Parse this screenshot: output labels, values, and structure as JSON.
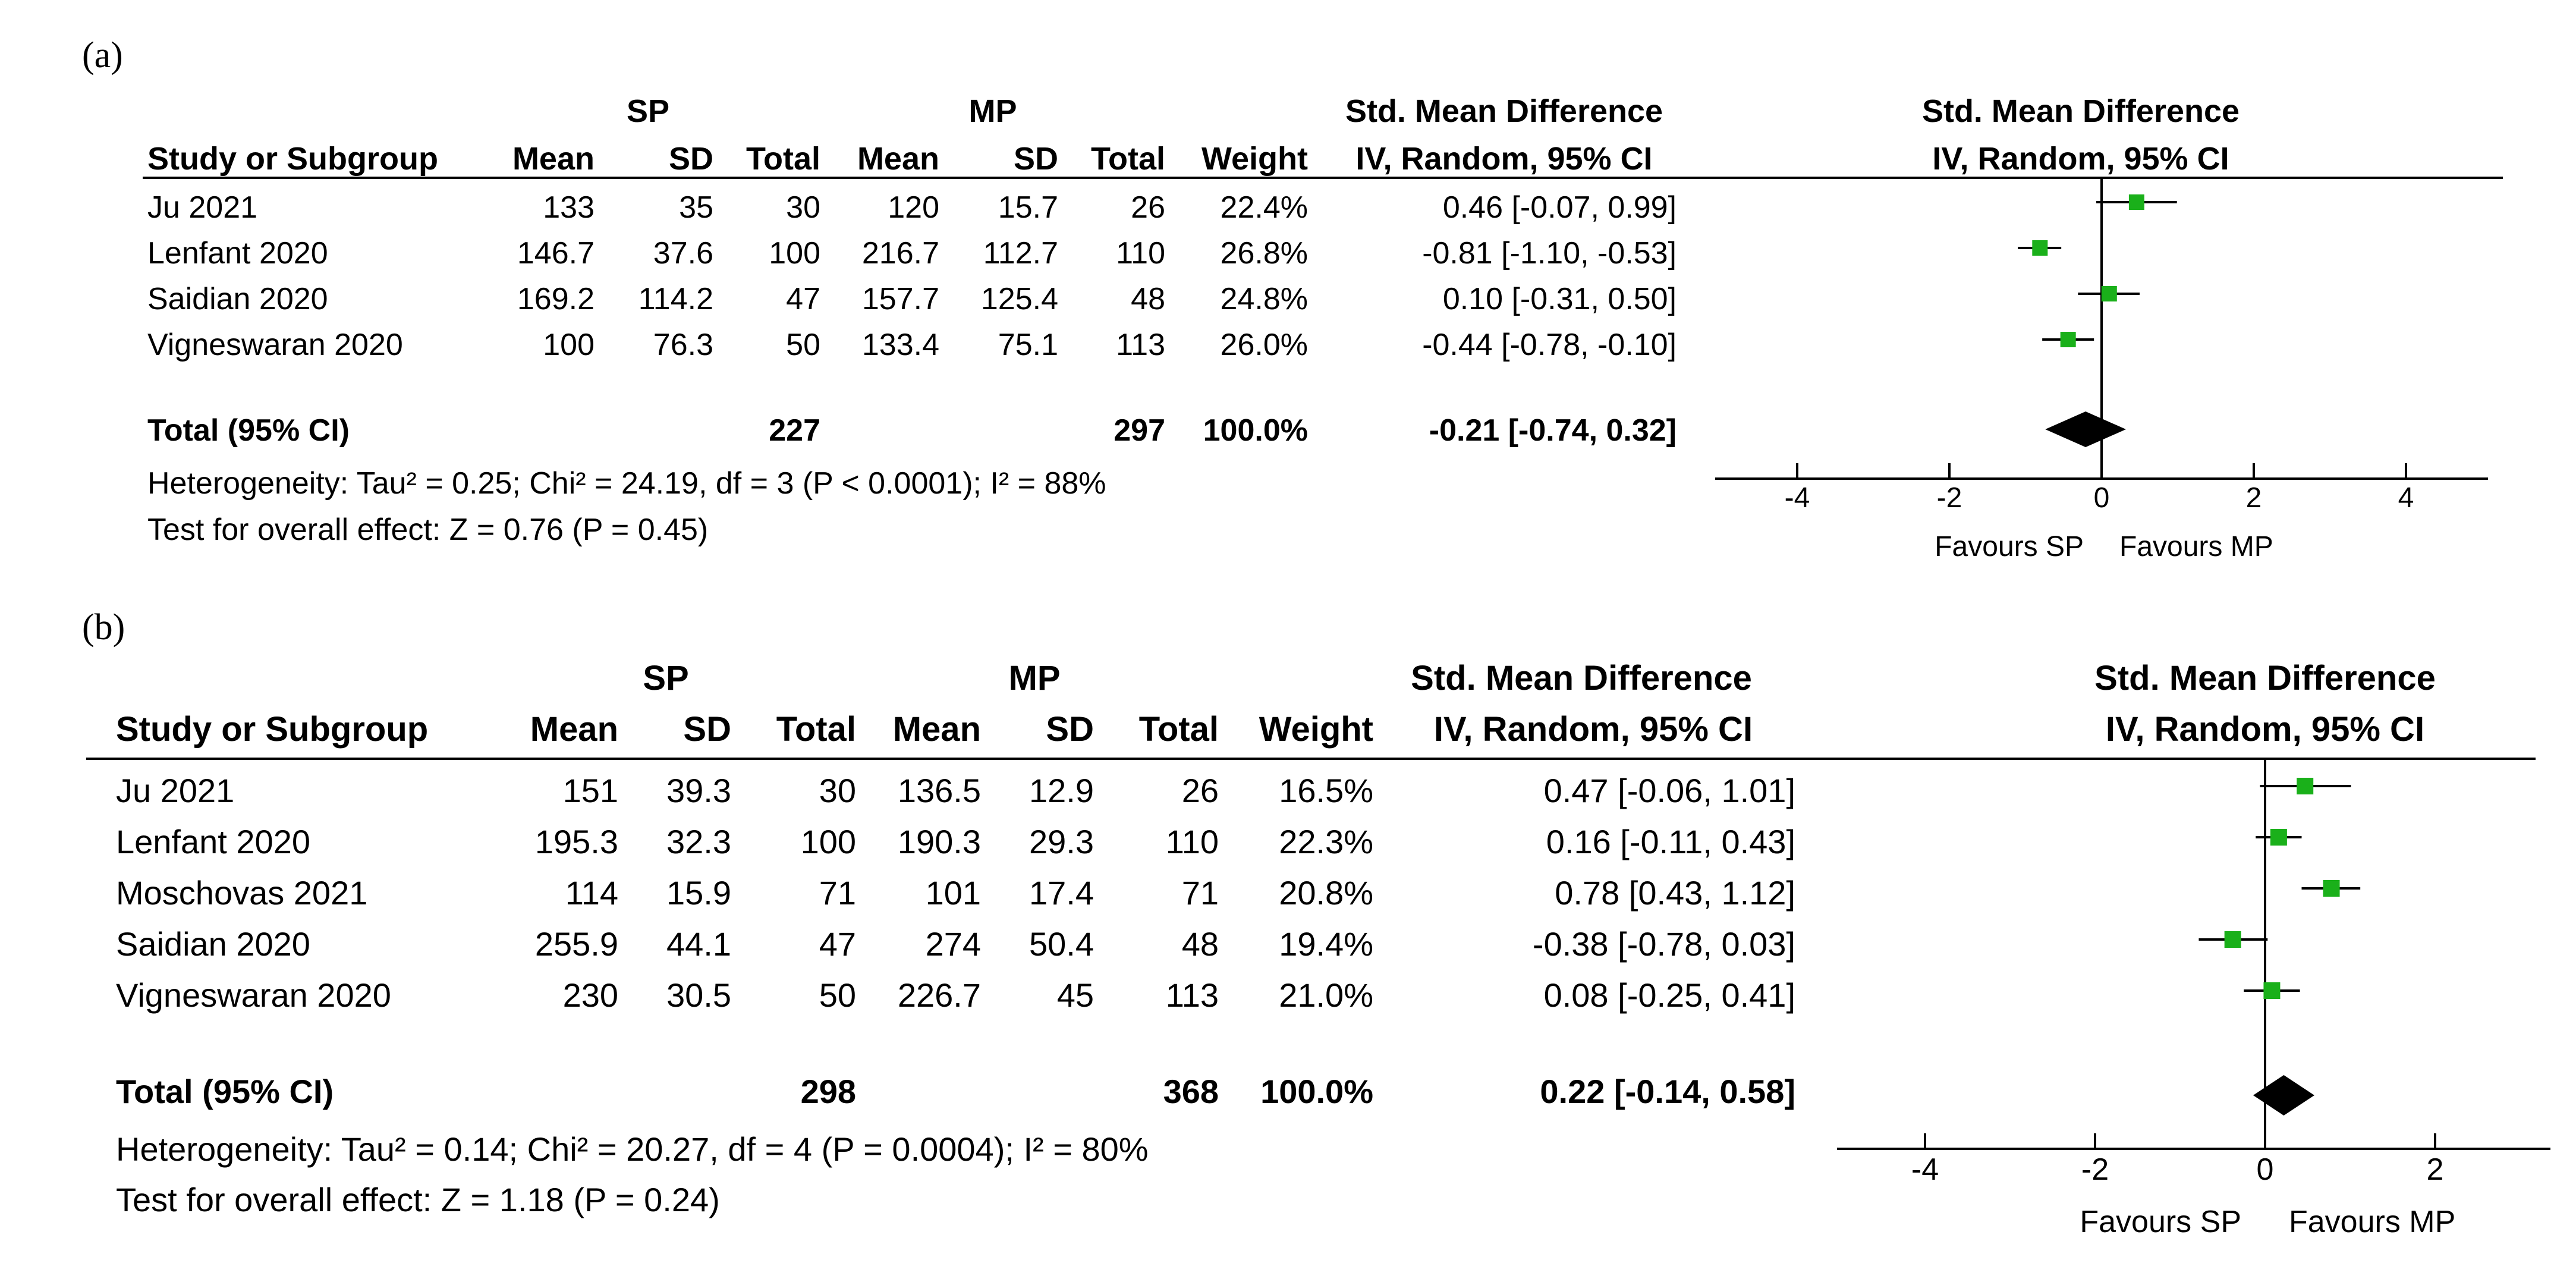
{
  "chart_data": [
    {
      "type": "forest",
      "panel_label": "(a)",
      "group1": "SP",
      "group2": "MP",
      "column_headers": {
        "study": "Study or Subgroup",
        "mean": "Mean",
        "sd": "SD",
        "total": "Total",
        "weight": "Weight",
        "effect_title": "Std. Mean Difference",
        "effect_method": "IV, Random, 95% CI"
      },
      "plot_headers": {
        "title": "Std. Mean Difference",
        "method": "IV, Random, 95% CI"
      },
      "studies": [
        {
          "name": "Ju 2021",
          "sp_mean": "133",
          "sp_sd": "35",
          "sp_total": "30",
          "mp_mean": "120",
          "mp_sd": "15.7",
          "mp_total": "26",
          "weight": "22.4%",
          "ci_text": "0.46 [-0.07, 0.99]",
          "est": 0.46,
          "lo": -0.07,
          "hi": 0.99
        },
        {
          "name": "Lenfant 2020",
          "sp_mean": "146.7",
          "sp_sd": "37.6",
          "sp_total": "100",
          "mp_mean": "216.7",
          "mp_sd": "112.7",
          "mp_total": "110",
          "weight": "26.8%",
          "ci_text": "-0.81 [-1.10, -0.53]",
          "est": -0.81,
          "lo": -1.1,
          "hi": -0.53
        },
        {
          "name": "Saidian 2020",
          "sp_mean": "169.2",
          "sp_sd": "114.2",
          "sp_total": "47",
          "mp_mean": "157.7",
          "mp_sd": "125.4",
          "mp_total": "48",
          "weight": "24.8%",
          "ci_text": "0.10 [-0.31, 0.50]",
          "est": 0.1,
          "lo": -0.31,
          "hi": 0.5
        },
        {
          "name": "Vigneswaran 2020",
          "sp_mean": "100",
          "sp_sd": "76.3",
          "sp_total": "50",
          "mp_mean": "133.4",
          "mp_sd": "75.1",
          "mp_total": "113",
          "weight": "26.0%",
          "ci_text": "-0.44 [-0.78, -0.10]",
          "est": -0.44,
          "lo": -0.78,
          "hi": -0.1
        }
      ],
      "total": {
        "label": "Total (95% CI)",
        "sp_total": "227",
        "mp_total": "297",
        "weight": "100.0%",
        "ci_text": "-0.21 [-0.74, 0.32]",
        "est": -0.21,
        "lo": -0.74,
        "hi": 0.32
      },
      "heterogeneity": "Heterogeneity: Tau² = 0.25; Chi² = 24.19, df = 3 (P < 0.0001); I² = 88%",
      "overall_effect": "Test for overall effect: Z = 0.76 (P = 0.45)",
      "axis": {
        "min": -5,
        "max": 5,
        "ticks": [
          -4,
          -2,
          0,
          2,
          4
        ],
        "tick_labels": [
          "-4",
          "-2",
          "0",
          "2",
          "4"
        ]
      },
      "favours_left": "Favours SP",
      "favours_right": "Favours MP",
      "marker_color": "#1ab01a"
    },
    {
      "type": "forest",
      "panel_label": "(b)",
      "group1": "SP",
      "group2": "MP",
      "column_headers": {
        "study": "Study or Subgroup",
        "mean": "Mean",
        "sd": "SD",
        "total": "Total",
        "weight": "Weight",
        "effect_title": "Std. Mean Difference",
        "effect_method": "IV, Random, 95% CI"
      },
      "plot_headers": {
        "title": "Std. Mean Difference",
        "method": "IV, Random, 95% CI"
      },
      "studies": [
        {
          "name": "Ju 2021",
          "sp_mean": "151",
          "sp_sd": "39.3",
          "sp_total": "30",
          "mp_mean": "136.5",
          "mp_sd": "12.9",
          "mp_total": "26",
          "weight": "16.5%",
          "ci_text": "0.47 [-0.06, 1.01]",
          "est": 0.47,
          "lo": -0.06,
          "hi": 1.01
        },
        {
          "name": "Lenfant 2020",
          "sp_mean": "195.3",
          "sp_sd": "32.3",
          "sp_total": "100",
          "mp_mean": "190.3",
          "mp_sd": "29.3",
          "mp_total": "110",
          "weight": "22.3%",
          "ci_text": "0.16 [-0.11, 0.43]",
          "est": 0.16,
          "lo": -0.11,
          "hi": 0.43
        },
        {
          "name": "Moschovas 2021",
          "sp_mean": "114",
          "sp_sd": "15.9",
          "sp_total": "71",
          "mp_mean": "101",
          "mp_sd": "17.4",
          "mp_total": "71",
          "weight": "20.8%",
          "ci_text": "0.78 [0.43, 1.12]",
          "est": 0.78,
          "lo": 0.43,
          "hi": 1.12
        },
        {
          "name": "Saidian 2020",
          "sp_mean": "255.9",
          "sp_sd": "44.1",
          "sp_total": "47",
          "mp_mean": "274",
          "mp_sd": "50.4",
          "mp_total": "48",
          "weight": "19.4%",
          "ci_text": "-0.38 [-0.78, 0.03]",
          "est": -0.38,
          "lo": -0.78,
          "hi": 0.03
        },
        {
          "name": "Vigneswaran 2020",
          "sp_mean": "230",
          "sp_sd": "30.5",
          "sp_total": "50",
          "mp_mean": "226.7",
          "mp_sd": "45",
          "mp_total": "113",
          "weight": "21.0%",
          "ci_text": "0.08 [-0.25, 0.41]",
          "est": 0.08,
          "lo": -0.25,
          "hi": 0.41
        }
      ],
      "total": {
        "label": "Total (95% CI)",
        "sp_total": "298",
        "mp_total": "368",
        "weight": "100.0%",
        "ci_text": "0.22 [-0.14, 0.58]",
        "est": 0.22,
        "lo": -0.14,
        "hi": 0.58
      },
      "heterogeneity": "Heterogeneity: Tau² = 0.14; Chi² = 20.27, df = 4 (P = 0.0004); I² = 80%",
      "overall_effect": "Test for overall effect: Z = 1.18 (P = 0.24)",
      "axis": {
        "min": -5,
        "max": 3.2,
        "ticks": [
          -4,
          -2,
          0,
          2
        ],
        "tick_labels": [
          "-4",
          "-2",
          "0",
          "2"
        ]
      },
      "favours_left": "Favours SP",
      "favours_right": "Favours MP",
      "marker_color": "#1ab01a"
    }
  ]
}
